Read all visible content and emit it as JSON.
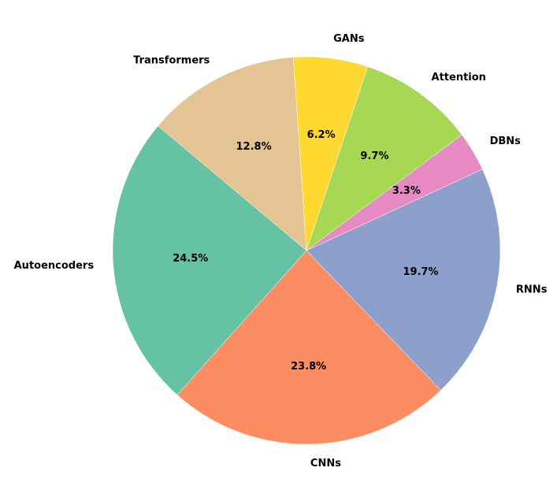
{
  "chart_data": {
    "type": "pie",
    "categories": [
      "Autoencoders",
      "CNNs",
      "RNNs",
      "DBNs",
      "Attention",
      "GANs",
      "Transformers"
    ],
    "values": [
      24.5,
      23.8,
      19.7,
      3.3,
      9.7,
      6.2,
      12.8
    ],
    "value_labels": [
      "24.5%",
      "23.8%",
      "19.7%",
      "3.3%",
      "9.7%",
      "6.2%",
      "12.8%"
    ],
    "colors": [
      "#66c2a5",
      "#fc8d62",
      "#8da0cb",
      "#e78ac3",
      "#a6d854",
      "#ffd92f",
      "#e5c494"
    ],
    "startangle": 140
  }
}
